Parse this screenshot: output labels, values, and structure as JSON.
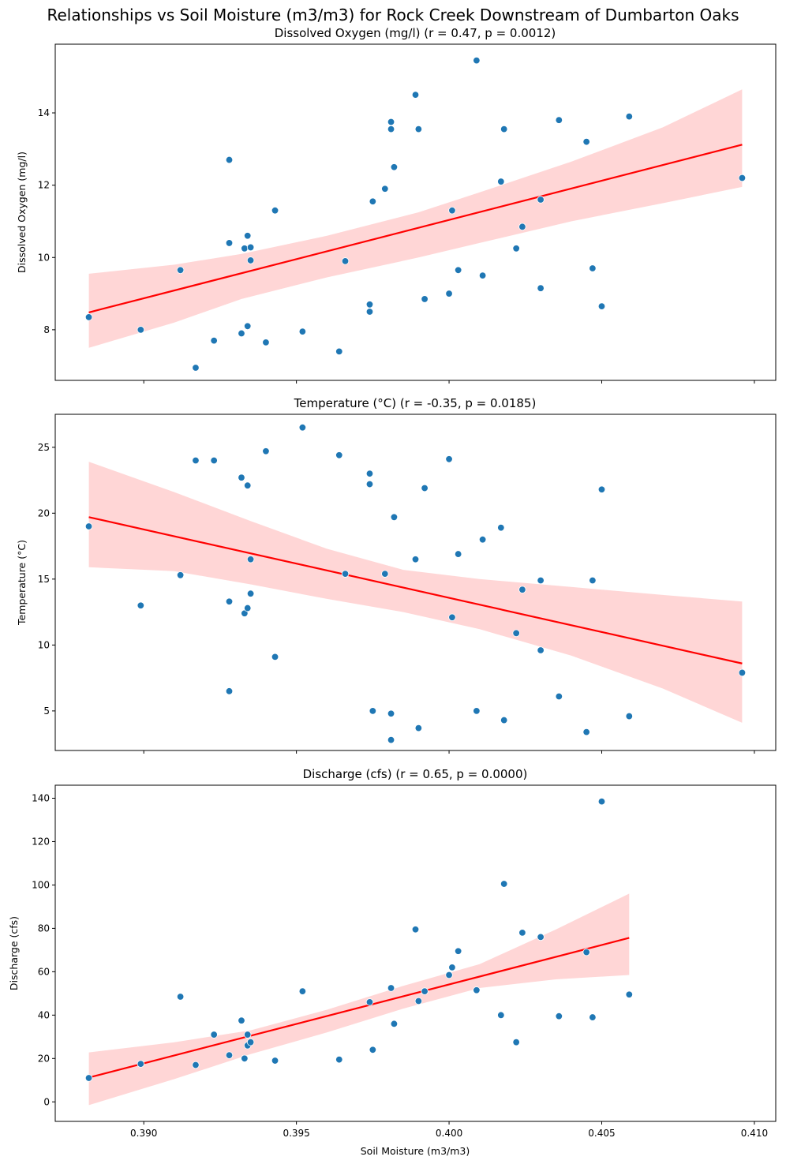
{
  "chart_data": {
    "type": "scatter",
    "title": "Relationships vs Soil Moisture (m3/m3) for Rock Creek Downstream of Dumbarton Oaks",
    "xlabel": "Soil Moisture (m3/m3)",
    "xlim": [
      0.3871,
      0.4107
    ],
    "xticks": [
      0.39,
      0.395,
      0.4,
      0.405,
      0.41
    ],
    "xtick_labels": [
      "0.390",
      "0.395",
      "0.400",
      "0.405",
      "0.410"
    ],
    "panels": [
      {
        "title": "Dissolved Oxygen (mg/l) (r = 0.47, p = 0.0012)",
        "ylabel": "Dissolved Oxygen (mg/l)",
        "ylim": [
          6.6,
          15.9
        ],
        "yticks": [
          8,
          10,
          12,
          14
        ],
        "ytick_labels": [
          "8",
          "10",
          "12",
          "14"
        ],
        "fit": {
          "x": [
            0.3882,
            0.4096
          ],
          "y": [
            8.48,
            13.12
          ]
        },
        "band": {
          "x": [
            0.3882,
            0.391,
            0.3932,
            0.396,
            0.399,
            0.401,
            0.404,
            0.407,
            0.4096
          ],
          "upper": [
            9.55,
            9.8,
            10.1,
            10.6,
            11.25,
            11.8,
            12.65,
            13.6,
            14.65
          ],
          "lower": [
            7.5,
            8.2,
            8.85,
            9.45,
            10.0,
            10.4,
            11.0,
            11.5,
            11.95
          ]
        },
        "points": [
          {
            "x": 0.3882,
            "y": 8.35
          },
          {
            "x": 0.3899,
            "y": 8.0
          },
          {
            "x": 0.3912,
            "y": 9.65
          },
          {
            "x": 0.3917,
            "y": 6.95
          },
          {
            "x": 0.3923,
            "y": 7.7
          },
          {
            "x": 0.3928,
            "y": 12.7
          },
          {
            "x": 0.3928,
            "y": 10.4
          },
          {
            "x": 0.3932,
            "y": 7.9
          },
          {
            "x": 0.3933,
            "y": 10.25
          },
          {
            "x": 0.3934,
            "y": 8.1
          },
          {
            "x": 0.3934,
            "y": 10.6
          },
          {
            "x": 0.3935,
            "y": 10.28
          },
          {
            "x": 0.3935,
            "y": 9.92
          },
          {
            "x": 0.394,
            "y": 7.65
          },
          {
            "x": 0.3943,
            "y": 11.3
          },
          {
            "x": 0.3952,
            "y": 7.95
          },
          {
            "x": 0.3964,
            "y": 7.4
          },
          {
            "x": 0.3966,
            "y": 9.9
          },
          {
            "x": 0.3974,
            "y": 8.7
          },
          {
            "x": 0.3974,
            "y": 8.5
          },
          {
            "x": 0.3975,
            "y": 11.55
          },
          {
            "x": 0.3979,
            "y": 11.9
          },
          {
            "x": 0.3981,
            "y": 13.75
          },
          {
            "x": 0.3981,
            "y": 13.55
          },
          {
            "x": 0.3982,
            "y": 12.5
          },
          {
            "x": 0.3989,
            "y": 14.5
          },
          {
            "x": 0.399,
            "y": 13.55
          },
          {
            "x": 0.3992,
            "y": 8.85
          },
          {
            "x": 0.4,
            "y": 9.0
          },
          {
            "x": 0.4001,
            "y": 11.3
          },
          {
            "x": 0.4003,
            "y": 9.65
          },
          {
            "x": 0.4009,
            "y": 15.45
          },
          {
            "x": 0.4011,
            "y": 9.5
          },
          {
            "x": 0.4017,
            "y": 12.1
          },
          {
            "x": 0.4018,
            "y": 13.55
          },
          {
            "x": 0.4022,
            "y": 10.25
          },
          {
            "x": 0.4024,
            "y": 10.85
          },
          {
            "x": 0.403,
            "y": 9.15
          },
          {
            "x": 0.403,
            "y": 11.6
          },
          {
            "x": 0.4036,
            "y": 13.8
          },
          {
            "x": 0.4045,
            "y": 13.2
          },
          {
            "x": 0.4047,
            "y": 9.7
          },
          {
            "x": 0.405,
            "y": 8.65
          },
          {
            "x": 0.4059,
            "y": 13.9
          },
          {
            "x": 0.4096,
            "y": 12.2
          }
        ]
      },
      {
        "title": "Temperature (°C) (r = -0.35, p = 0.0185)",
        "ylabel": "Temperature (°C)",
        "ylim": [
          2.0,
          27.5
        ],
        "yticks": [
          5,
          10,
          15,
          20,
          25
        ],
        "ytick_labels": [
          "5",
          "10",
          "15",
          "20",
          "25"
        ],
        "fit": {
          "x": [
            0.3882,
            0.4096
          ],
          "y": [
            19.7,
            8.6
          ]
        },
        "band": {
          "x": [
            0.3882,
            0.391,
            0.3935,
            0.396,
            0.3985,
            0.401,
            0.404,
            0.407,
            0.4096
          ],
          "upper": [
            23.9,
            21.6,
            19.4,
            17.3,
            15.7,
            15.0,
            14.4,
            13.8,
            13.3
          ],
          "lower": [
            15.9,
            15.6,
            14.6,
            13.5,
            12.5,
            11.2,
            9.2,
            6.7,
            4.1
          ]
        },
        "points": [
          {
            "x": 0.3882,
            "y": 19.0
          },
          {
            "x": 0.3899,
            "y": 13.0
          },
          {
            "x": 0.3912,
            "y": 15.3
          },
          {
            "x": 0.3917,
            "y": 24.0
          },
          {
            "x": 0.3923,
            "y": 24.0
          },
          {
            "x": 0.3928,
            "y": 13.3
          },
          {
            "x": 0.3928,
            "y": 6.5
          },
          {
            "x": 0.3932,
            "y": 22.7
          },
          {
            "x": 0.3933,
            "y": 12.4
          },
          {
            "x": 0.3934,
            "y": 22.1
          },
          {
            "x": 0.3934,
            "y": 12.8
          },
          {
            "x": 0.3935,
            "y": 16.5
          },
          {
            "x": 0.3935,
            "y": 13.9
          },
          {
            "x": 0.394,
            "y": 24.7
          },
          {
            "x": 0.3943,
            "y": 9.1
          },
          {
            "x": 0.3952,
            "y": 26.5
          },
          {
            "x": 0.3964,
            "y": 24.4
          },
          {
            "x": 0.3966,
            "y": 15.4
          },
          {
            "x": 0.3974,
            "y": 23.0
          },
          {
            "x": 0.3974,
            "y": 22.2
          },
          {
            "x": 0.3975,
            "y": 5.0
          },
          {
            "x": 0.3979,
            "y": 15.4
          },
          {
            "x": 0.3981,
            "y": 2.8
          },
          {
            "x": 0.3981,
            "y": 4.8
          },
          {
            "x": 0.3982,
            "y": 19.7
          },
          {
            "x": 0.3989,
            "y": 16.5
          },
          {
            "x": 0.399,
            "y": 3.7
          },
          {
            "x": 0.3992,
            "y": 21.9
          },
          {
            "x": 0.4,
            "y": 24.1
          },
          {
            "x": 0.4001,
            "y": 12.1
          },
          {
            "x": 0.4003,
            "y": 16.9
          },
          {
            "x": 0.4009,
            "y": 5.0
          },
          {
            "x": 0.4011,
            "y": 18.0
          },
          {
            "x": 0.4017,
            "y": 18.9
          },
          {
            "x": 0.4018,
            "y": 4.3
          },
          {
            "x": 0.4022,
            "y": 10.9
          },
          {
            "x": 0.4024,
            "y": 14.2
          },
          {
            "x": 0.403,
            "y": 14.9
          },
          {
            "x": 0.403,
            "y": 9.6
          },
          {
            "x": 0.4036,
            "y": 6.1
          },
          {
            "x": 0.4045,
            "y": 3.4
          },
          {
            "x": 0.4047,
            "y": 14.9
          },
          {
            "x": 0.405,
            "y": 21.8
          },
          {
            "x": 0.4059,
            "y": 4.6
          },
          {
            "x": 0.4096,
            "y": 7.9
          }
        ]
      },
      {
        "title": "Discharge (cfs) (r = 0.65, p = 0.0000)",
        "ylabel": "Discharge (cfs)",
        "ylim": [
          -9,
          146
        ],
        "yticks": [
          0,
          20,
          40,
          60,
          80,
          100,
          120,
          140
        ],
        "ytick_labels": [
          "0",
          "20",
          "40",
          "60",
          "80",
          "100",
          "120",
          "140"
        ],
        "fit": {
          "x": [
            0.3882,
            0.4059
          ],
          "y": [
            11.2,
            75.6
          ]
        },
        "band": {
          "x": [
            0.3882,
            0.391,
            0.3935,
            0.396,
            0.3985,
            0.401,
            0.4035,
            0.4059
          ],
          "upper": [
            22.8,
            27.5,
            33.0,
            42.5,
            53.5,
            63.5,
            79.5,
            96.0
          ],
          "lower": [
            -1.5,
            10.5,
            22.0,
            32.0,
            43.0,
            52.5,
            56.5,
            58.5
          ]
        },
        "points": [
          {
            "x": 0.3882,
            "y": 11.0
          },
          {
            "x": 0.3899,
            "y": 17.5
          },
          {
            "x": 0.3912,
            "y": 48.5
          },
          {
            "x": 0.3917,
            "y": 17.0
          },
          {
            "x": 0.3923,
            "y": 31.0
          },
          {
            "x": 0.3928,
            "y": 21.5
          },
          {
            "x": 0.3932,
            "y": 37.5
          },
          {
            "x": 0.3933,
            "y": 20.0
          },
          {
            "x": 0.3934,
            "y": 31.0
          },
          {
            "x": 0.3934,
            "y": 26.0
          },
          {
            "x": 0.3935,
            "y": 27.5
          },
          {
            "x": 0.3943,
            "y": 19.0
          },
          {
            "x": 0.3952,
            "y": 51.0
          },
          {
            "x": 0.3964,
            "y": 19.5
          },
          {
            "x": 0.3974,
            "y": 46.0
          },
          {
            "x": 0.3975,
            "y": 24.0
          },
          {
            "x": 0.3981,
            "y": 52.5
          },
          {
            "x": 0.3982,
            "y": 36.0
          },
          {
            "x": 0.3989,
            "y": 79.5
          },
          {
            "x": 0.399,
            "y": 46.5
          },
          {
            "x": 0.3992,
            "y": 51.0
          },
          {
            "x": 0.4,
            "y": 58.5
          },
          {
            "x": 0.4001,
            "y": 62.0
          },
          {
            "x": 0.4003,
            "y": 69.5
          },
          {
            "x": 0.4009,
            "y": 51.5
          },
          {
            "x": 0.4017,
            "y": 40.0
          },
          {
            "x": 0.4018,
            "y": 100.5
          },
          {
            "x": 0.4022,
            "y": 27.5
          },
          {
            "x": 0.4024,
            "y": 78.0
          },
          {
            "x": 0.403,
            "y": 76.0
          },
          {
            "x": 0.4036,
            "y": 39.5
          },
          {
            "x": 0.4045,
            "y": 69.0
          },
          {
            "x": 0.4047,
            "y": 39.0
          },
          {
            "x": 0.405,
            "y": 138.5
          },
          {
            "x": 0.4059,
            "y": 49.5
          }
        ]
      }
    ]
  }
}
